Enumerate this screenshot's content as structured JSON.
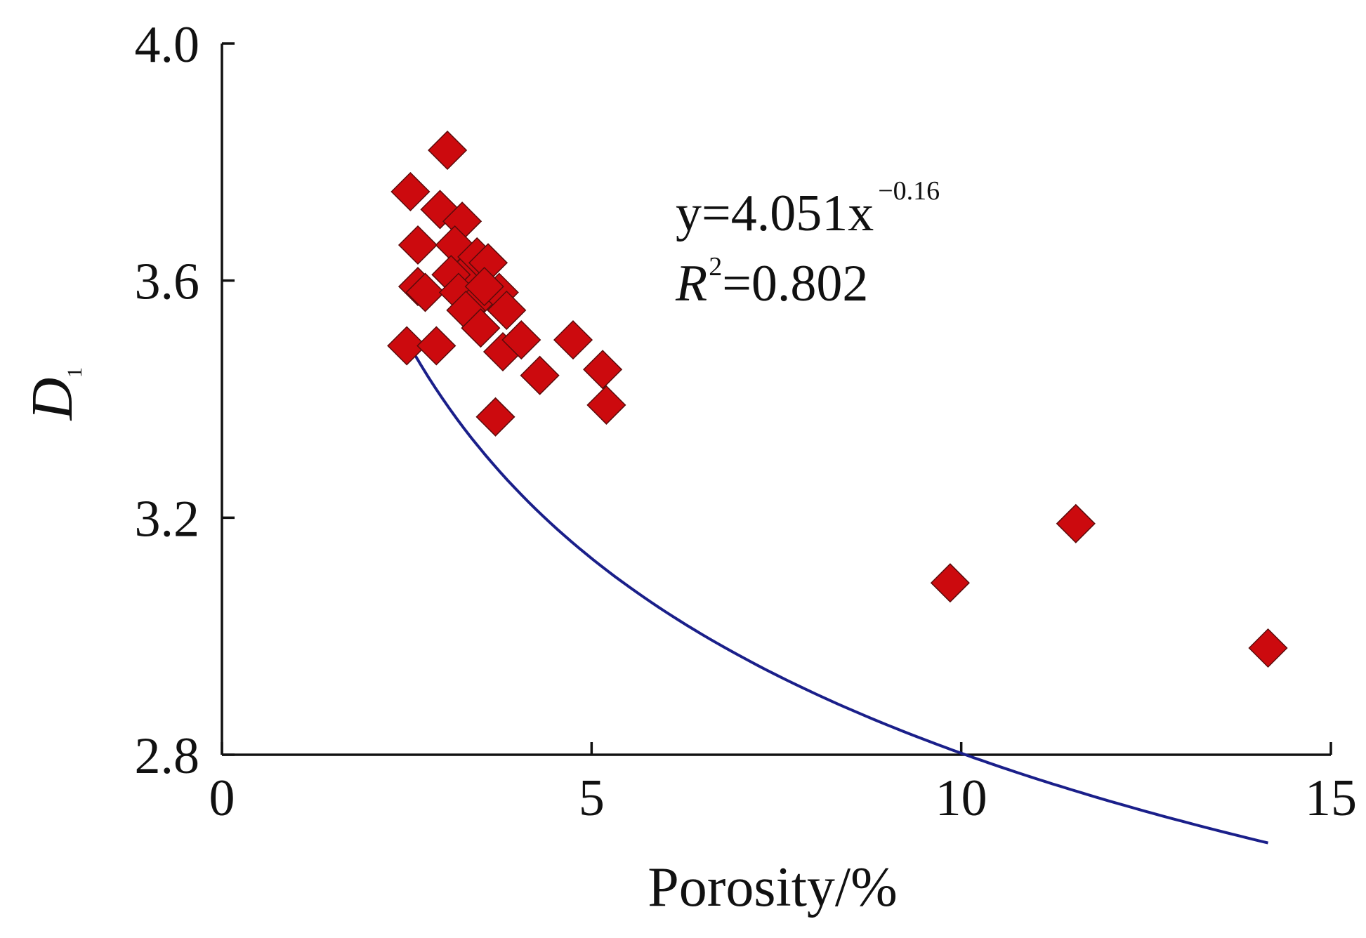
{
  "chart_data": {
    "type": "scatter",
    "title": "",
    "xlabel": "Porosity/%",
    "ylabel": {
      "main": "D",
      "subscript": "1"
    },
    "xlim": [
      0,
      15
    ],
    "ylim": [
      2.8,
      4.0
    ],
    "xticks": [
      0,
      5,
      10,
      15
    ],
    "xtick_labels": [
      "0",
      "5",
      "10",
      "15"
    ],
    "yticks": [
      2.8,
      3.2,
      3.6,
      4.0
    ],
    "ytick_labels": [
      "2.8",
      "3.2",
      "3.6",
      "4.0"
    ],
    "grid": false,
    "legend": "none",
    "colors": {
      "points": "#cc0a0e",
      "point_edge": "#5a0b0b",
      "fit_line": "#1a1f8a",
      "axes": "#111111"
    },
    "series": [
      {
        "marker": "diamond",
        "x": [
          3.05,
          2.55,
          2.65,
          2.95,
          3.25,
          3.15,
          3.35,
          3.45,
          3.6,
          3.75,
          2.65,
          2.75,
          3.1,
          3.2,
          3.4,
          3.55,
          3.85,
          3.3,
          3.5,
          2.5,
          2.9,
          3.8,
          4.05,
          4.75,
          4.3,
          5.15,
          5.2,
          3.7,
          9.85,
          11.55,
          14.15
        ],
        "y": [
          3.82,
          3.75,
          3.66,
          3.72,
          3.7,
          3.66,
          3.62,
          3.64,
          3.63,
          3.58,
          3.59,
          3.58,
          3.61,
          3.58,
          3.56,
          3.59,
          3.55,
          3.55,
          3.52,
          3.49,
          3.49,
          3.48,
          3.5,
          3.5,
          3.44,
          3.45,
          3.39,
          3.37,
          3.09,
          3.19,
          2.98
        ]
      }
    ],
    "fit": {
      "model": "power",
      "a": 4.051,
      "b": -0.16,
      "x_range": [
        2.5,
        14.15
      ]
    },
    "annotation": {
      "eq_prefix": "y=4.051x",
      "eq_exponent": "−0.16",
      "r2_symbol": "R",
      "r2_power": "2",
      "r2_value": "=0.802"
    }
  }
}
